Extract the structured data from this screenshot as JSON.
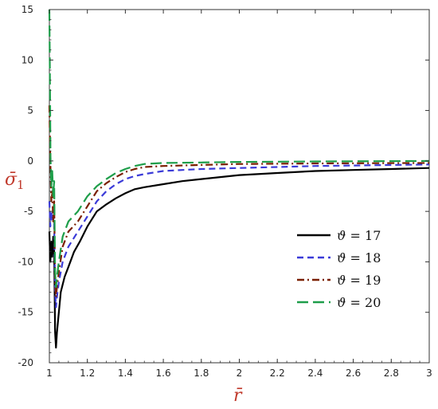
{
  "chart_data": {
    "type": "line",
    "xlabel": "r̄",
    "ylabel": {
      "main": "σ̄",
      "subscript": "1"
    },
    "xlim": [
      1,
      3
    ],
    "ylim": [
      -20,
      15
    ],
    "xticks": [
      1,
      1.2,
      1.4,
      1.6,
      1.8,
      2,
      2.2,
      2.4,
      2.6,
      2.8,
      3
    ],
    "xtick_labels": [
      "1",
      "1.2",
      "1.4",
      "1.6",
      "1.8",
      "2",
      "2.2",
      "2.4",
      "2.6",
      "2.8",
      "3"
    ],
    "yticks": [
      15,
      10,
      5,
      0,
      -5,
      -10,
      -15,
      -20
    ],
    "ytick_labels": [
      "15",
      "10",
      "5",
      "0",
      "-5",
      "-10",
      "-15",
      "-20"
    ],
    "grid": false,
    "legend_position": "right",
    "series": [
      {
        "name": "ϑ = 17",
        "symbol": "ϑ",
        "value_text": "17",
        "color": "#000000",
        "dash": "solid",
        "x": [
          1.0,
          1.005,
          1.01,
          1.015,
          1.02,
          1.025,
          1.03,
          1.035,
          1.04,
          1.05,
          1.06,
          1.08,
          1.1,
          1.13,
          1.16,
          1.2,
          1.25,
          1.3,
          1.35,
          1.4,
          1.45,
          1.5,
          1.6,
          1.7,
          1.8,
          2.0,
          2.2,
          2.4,
          2.6,
          2.8,
          3.0
        ],
        "y": [
          -7.0,
          -10.0,
          -8.0,
          -9.5,
          -7.5,
          -9.0,
          -17.0,
          -18.5,
          -17.0,
          -15.0,
          -13.0,
          -11.5,
          -10.5,
          -9.0,
          -8.0,
          -6.5,
          -5.0,
          -4.3,
          -3.7,
          -3.2,
          -2.8,
          -2.6,
          -2.3,
          -2.0,
          -1.8,
          -1.4,
          -1.2,
          -1.0,
          -0.9,
          -0.8,
          -0.7
        ]
      },
      {
        "name": "ϑ = 18",
        "symbol": "ϑ",
        "value_text": "18",
        "color": "#3b3bd8",
        "dash": "dashed",
        "x": [
          1.0,
          1.005,
          1.01,
          1.015,
          1.02,
          1.025,
          1.03,
          1.035,
          1.04,
          1.05,
          1.07,
          1.1,
          1.15,
          1.2,
          1.25,
          1.3,
          1.35,
          1.4,
          1.45,
          1.5,
          1.6,
          1.7,
          1.8,
          2.0,
          2.2,
          2.4,
          2.6,
          2.8,
          3.0
        ],
        "y": [
          -4.0,
          -6.5,
          -5.0,
          -6.0,
          -5.5,
          -6.0,
          -13.0,
          -14.5,
          -13.5,
          -12.0,
          -10.0,
          -8.5,
          -7.0,
          -5.5,
          -4.0,
          -3.0,
          -2.3,
          -1.8,
          -1.5,
          -1.3,
          -1.0,
          -0.9,
          -0.8,
          -0.7,
          -0.6,
          -0.5,
          -0.45,
          -0.4,
          -0.35
        ]
      },
      {
        "name": "ϑ = 19",
        "symbol": "ϑ",
        "value_text": "19",
        "color": "#7a1f00",
        "dash": "dashdot",
        "x": [
          1.0,
          1.005,
          1.01,
          1.015,
          1.02,
          1.025,
          1.03,
          1.035,
          1.04,
          1.05,
          1.07,
          1.1,
          1.15,
          1.2,
          1.25,
          1.3,
          1.35,
          1.4,
          1.45,
          1.5,
          1.6,
          1.8,
          2.0,
          2.4,
          3.0
        ],
        "y": [
          5.5,
          0.0,
          -4.0,
          -3.0,
          -6.0,
          -4.0,
          -12.0,
          -13.5,
          -12.5,
          -11.0,
          -8.5,
          -7.0,
          -6.0,
          -4.5,
          -3.0,
          -2.2,
          -1.6,
          -1.1,
          -0.8,
          -0.6,
          -0.5,
          -0.4,
          -0.3,
          -0.25,
          -0.2
        ]
      },
      {
        "name": "ϑ = 20",
        "symbol": "ϑ",
        "value_text": "20",
        "color": "#1e9e4a",
        "dash": "longdash",
        "x": [
          1.0,
          1.003,
          1.006,
          1.01,
          1.015,
          1.02,
          1.025,
          1.03,
          1.035,
          1.04,
          1.05,
          1.07,
          1.1,
          1.15,
          1.2,
          1.25,
          1.3,
          1.35,
          1.4,
          1.45,
          1.5,
          1.6,
          1.8,
          2.0,
          2.4,
          3.0
        ],
        "y": [
          15.0,
          8.0,
          0.5,
          -2.5,
          -1.0,
          -3.5,
          -2.0,
          -11.0,
          -12.5,
          -11.5,
          -10.0,
          -7.5,
          -6.0,
          -5.0,
          -3.5,
          -2.5,
          -1.8,
          -1.2,
          -0.8,
          -0.5,
          -0.3,
          -0.2,
          -0.15,
          -0.1,
          -0.05,
          0.0
        ]
      }
    ]
  }
}
